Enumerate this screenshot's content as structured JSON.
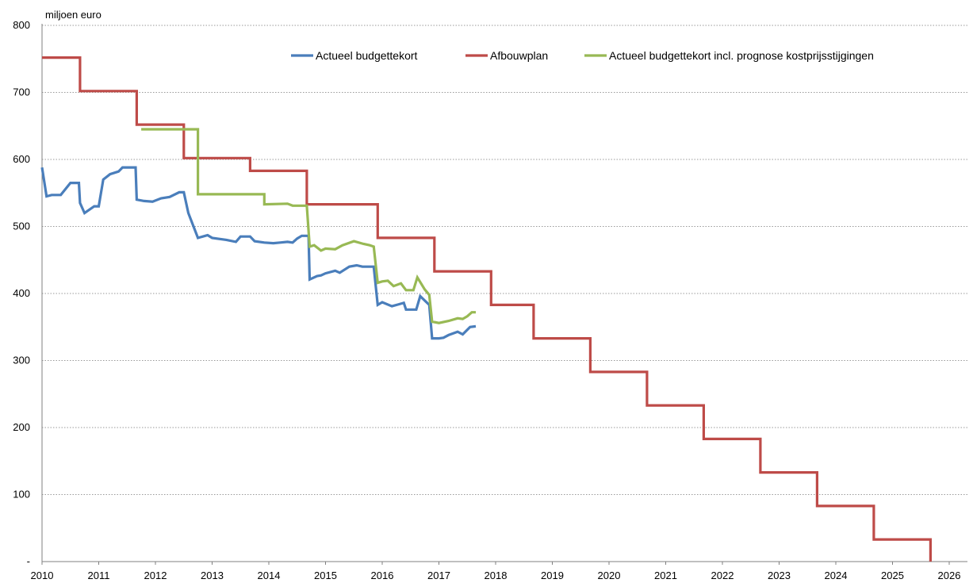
{
  "chart_data": {
    "type": "line",
    "ylabel": "miljoen euro",
    "xlabel": "",
    "title": "",
    "ylim": [
      0,
      800
    ],
    "xlim": [
      2010,
      2026.5
    ],
    "y_ticks": [
      0,
      100,
      200,
      300,
      400,
      500,
      600,
      700,
      800
    ],
    "y_tick_labels": [
      "-",
      "100",
      "200",
      "300",
      "400",
      "500",
      "600",
      "700",
      "800"
    ],
    "x_ticks": [
      2010,
      2011,
      2012,
      2013,
      2014,
      2015,
      2016,
      2017,
      2018,
      2019,
      2020,
      2021,
      2022,
      2023,
      2024,
      2025,
      2026
    ],
    "x_tick_labels": [
      "2010",
      "2011",
      "2012",
      "2013",
      "2014",
      "2015",
      "2016",
      "2017",
      "2018",
      "2019",
      "2020",
      "2021",
      "2022",
      "2023",
      "2024",
      "2025",
      "2026"
    ],
    "grid": true,
    "legend_position": "top-right",
    "series": [
      {
        "name": "Actueel budgettekort",
        "color": "#4a7ebb",
        "points": [
          [
            2010.0,
            588
          ],
          [
            2010.08,
            545
          ],
          [
            2010.17,
            547
          ],
          [
            2010.33,
            547
          ],
          [
            2010.5,
            565
          ],
          [
            2010.65,
            565
          ],
          [
            2010.67,
            535
          ],
          [
            2010.75,
            520
          ],
          [
            2010.92,
            530
          ],
          [
            2011.0,
            530
          ],
          [
            2011.08,
            570
          ],
          [
            2011.2,
            578
          ],
          [
            2011.35,
            582
          ],
          [
            2011.42,
            588
          ],
          [
            2011.65,
            588
          ],
          [
            2011.67,
            540
          ],
          [
            2011.8,
            538
          ],
          [
            2011.95,
            537
          ],
          [
            2012.1,
            542
          ],
          [
            2012.25,
            544
          ],
          [
            2012.42,
            551
          ],
          [
            2012.5,
            551
          ],
          [
            2012.58,
            520
          ],
          [
            2012.75,
            483
          ],
          [
            2012.92,
            487
          ],
          [
            2013.0,
            483
          ],
          [
            2013.25,
            480
          ],
          [
            2013.42,
            477
          ],
          [
            2013.5,
            485
          ],
          [
            2013.67,
            485
          ],
          [
            2013.75,
            478
          ],
          [
            2013.92,
            476
          ],
          [
            2014.08,
            475
          ],
          [
            2014.2,
            476
          ],
          [
            2014.33,
            477
          ],
          [
            2014.42,
            476
          ],
          [
            2014.5,
            482
          ],
          [
            2014.58,
            486
          ],
          [
            2014.7,
            486
          ],
          [
            2014.72,
            421
          ],
          [
            2014.85,
            426
          ],
          [
            2014.92,
            427
          ],
          [
            2015.0,
            430
          ],
          [
            2015.17,
            434
          ],
          [
            2015.25,
            431
          ],
          [
            2015.42,
            440
          ],
          [
            2015.55,
            442
          ],
          [
            2015.65,
            440
          ],
          [
            2015.85,
            440
          ],
          [
            2015.92,
            383
          ],
          [
            2016.0,
            387
          ],
          [
            2016.17,
            381
          ],
          [
            2016.3,
            384
          ],
          [
            2016.38,
            386
          ],
          [
            2016.42,
            376
          ],
          [
            2016.6,
            376
          ],
          [
            2016.67,
            396
          ],
          [
            2016.83,
            383
          ],
          [
            2016.88,
            333
          ],
          [
            2017.0,
            333
          ],
          [
            2017.08,
            334
          ],
          [
            2017.17,
            338
          ],
          [
            2017.33,
            343
          ],
          [
            2017.42,
            339
          ],
          [
            2017.55,
            350
          ],
          [
            2017.65,
            351
          ]
        ]
      },
      {
        "name": "Afbouwplan",
        "color": "#be4b48",
        "points": [
          [
            2010.0,
            752
          ],
          [
            2010.67,
            752
          ],
          [
            2010.67,
            702
          ],
          [
            2011.67,
            702
          ],
          [
            2011.67,
            652
          ],
          [
            2012.5,
            652
          ],
          [
            2012.5,
            602
          ],
          [
            2013.67,
            602
          ],
          [
            2013.67,
            583
          ],
          [
            2014.67,
            583
          ],
          [
            2014.67,
            533
          ],
          [
            2015.92,
            533
          ],
          [
            2015.92,
            483
          ],
          [
            2016.92,
            483
          ],
          [
            2016.92,
            433
          ],
          [
            2017.92,
            433
          ],
          [
            2017.92,
            383
          ],
          [
            2018.67,
            383
          ],
          [
            2018.67,
            333
          ],
          [
            2019.67,
            333
          ],
          [
            2019.67,
            283
          ],
          [
            2020.67,
            283
          ],
          [
            2020.67,
            233
          ],
          [
            2021.67,
            233
          ],
          [
            2021.67,
            183
          ],
          [
            2022.67,
            183
          ],
          [
            2022.67,
            133
          ],
          [
            2023.67,
            133
          ],
          [
            2023.67,
            83
          ],
          [
            2024.67,
            83
          ],
          [
            2024.67,
            33
          ],
          [
            2025.67,
            33
          ],
          [
            2025.67,
            0
          ]
        ]
      },
      {
        "name": "Actueel budgettekort incl. prognose kostprijsstijgingen",
        "color": "#98b954",
        "points": [
          [
            2011.75,
            645
          ],
          [
            2012.75,
            645
          ],
          [
            2012.75,
            548
          ],
          [
            2013.92,
            548
          ],
          [
            2013.92,
            533
          ],
          [
            2014.33,
            534
          ],
          [
            2014.42,
            531
          ],
          [
            2014.67,
            531
          ],
          [
            2014.72,
            470
          ],
          [
            2014.8,
            472
          ],
          [
            2014.92,
            464
          ],
          [
            2015.0,
            467
          ],
          [
            2015.17,
            466
          ],
          [
            2015.3,
            472
          ],
          [
            2015.5,
            478
          ],
          [
            2015.67,
            474
          ],
          [
            2015.78,
            472
          ],
          [
            2015.85,
            470
          ],
          [
            2015.92,
            416
          ],
          [
            2016.0,
            418
          ],
          [
            2016.1,
            419
          ],
          [
            2016.2,
            411
          ],
          [
            2016.33,
            415
          ],
          [
            2016.42,
            405
          ],
          [
            2016.55,
            405
          ],
          [
            2016.62,
            424
          ],
          [
            2016.75,
            406
          ],
          [
            2016.83,
            398
          ],
          [
            2016.88,
            358
          ],
          [
            2017.0,
            356
          ],
          [
            2017.17,
            359
          ],
          [
            2017.33,
            363
          ],
          [
            2017.42,
            362
          ],
          [
            2017.5,
            366
          ],
          [
            2017.58,
            372
          ],
          [
            2017.65,
            372
          ]
        ]
      }
    ]
  }
}
